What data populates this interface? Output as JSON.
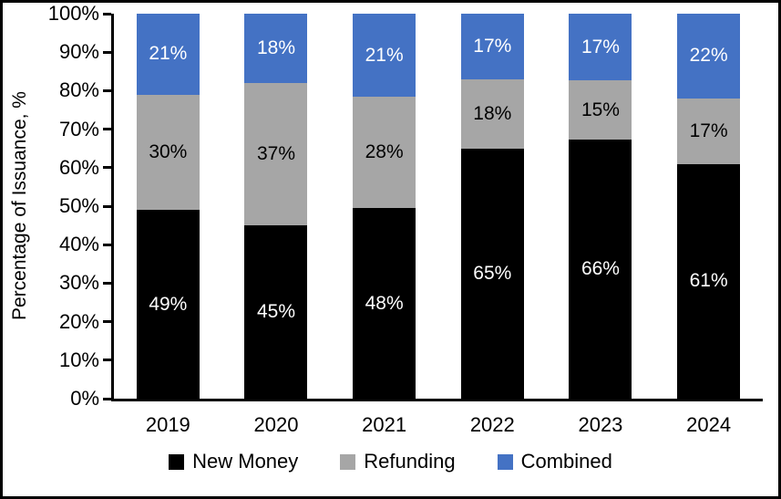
{
  "chart_data": {
    "type": "bar",
    "stacked": true,
    "title": "",
    "xlabel": "",
    "ylabel": "Percentage of Issuance, %",
    "ylim": [
      0,
      100
    ],
    "ytick_step": 10,
    "ytick_labels": [
      "0%",
      "10%",
      "20%",
      "30%",
      "40%",
      "50%",
      "60%",
      "70%",
      "80%",
      "90%",
      "100%"
    ],
    "grid": false,
    "legend_position": "bottom",
    "bar_label_suffix": "%",
    "categories": [
      "2019",
      "2020",
      "2021",
      "2022",
      "2023",
      "2024"
    ],
    "series": [
      {
        "name": "New Money",
        "color": "#000000",
        "label_color": "#FFFFFF",
        "values": [
          49,
          45,
          48,
          65,
          66,
          61
        ]
      },
      {
        "name": "Refunding",
        "color": "#A6A6A6",
        "label_color": "#000000",
        "values": [
          30,
          37,
          28,
          18,
          15,
          17
        ]
      },
      {
        "name": "Combined",
        "color": "#4472C4",
        "label_color": "#FFFFFF",
        "values": [
          21,
          18,
          21,
          17,
          17,
          22
        ]
      }
    ]
  },
  "colors": {
    "background": "#FFFFFF",
    "axis": "#000000",
    "frame_border": "#000000"
  }
}
